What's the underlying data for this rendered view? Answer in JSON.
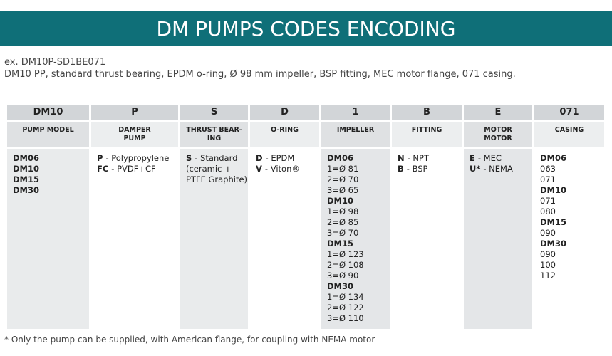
{
  "header": {
    "title": "DM PUMPS CODES ENCODING"
  },
  "example": {
    "code": "ex. DM10P-SD1BE071",
    "description": "DM10 PP, standard thrust bearing, EPDM o-ring, Ø 98 mm impeller, BSP fitting, MEC motor flange, 071 casing."
  },
  "table": {
    "columns": [
      {
        "code": "DM10",
        "label": [
          "PUMP MODEL"
        ],
        "body": [
          {
            "key": "DM06"
          },
          {
            "key": "DM10"
          },
          {
            "key": "DM15"
          },
          {
            "key": "DM30"
          }
        ]
      },
      {
        "code": "P",
        "label": [
          "DAMPER",
          "PUMP"
        ],
        "body": [
          {
            "key": "P",
            "text": "- Polypropylene"
          },
          {
            "key": "FC",
            "text": "- PVDF+CF"
          }
        ]
      },
      {
        "code": "S",
        "label": [
          "THRUST BEAR-",
          "ING"
        ],
        "body": [
          {
            "key": "S",
            "text": "- Standard"
          },
          {
            "text": "(ceramic +"
          },
          {
            "text": "PTFE Graphite)"
          }
        ]
      },
      {
        "code": "D",
        "label": [
          "O-RING"
        ],
        "body": [
          {
            "key": "D",
            "text": "- EPDM"
          },
          {
            "key": "V",
            "text": "- Viton®"
          }
        ]
      },
      {
        "code": "1",
        "label": [
          "IMPELLER"
        ],
        "body": [
          {
            "key": "DM06"
          },
          {
            "text": "1=Ø 81"
          },
          {
            "text": "2=Ø 70"
          },
          {
            "text": "3=Ø 65"
          },
          {
            "key": "DM10"
          },
          {
            "text": "1=Ø 98"
          },
          {
            "text": "2=Ø 85"
          },
          {
            "text": "3=Ø 70"
          },
          {
            "key": "DM15"
          },
          {
            "text": "1=Ø 123"
          },
          {
            "text": "2=Ø 108"
          },
          {
            "text": "3=Ø 90"
          },
          {
            "key": "DM30"
          },
          {
            "text": "1=Ø 134"
          },
          {
            "text": "2=Ø 122"
          },
          {
            "text": "3=Ø 110"
          }
        ]
      },
      {
        "code": "B",
        "label": [
          "FITTING"
        ],
        "body": [
          {
            "key": "N",
            "text": "- NPT"
          },
          {
            "key": "B",
            "text": "- BSP"
          }
        ]
      },
      {
        "code": "E",
        "label": [
          "MOTOR",
          "MOTOR"
        ],
        "body": [
          {
            "key": "E",
            "text": "- MEC"
          },
          {
            "key": "U*",
            "text": "- NEMA"
          }
        ]
      },
      {
        "code": "071",
        "label": [
          "CASING"
        ],
        "body": [
          {
            "key": "DM06"
          },
          {
            "text": "063"
          },
          {
            "text": "071"
          },
          {
            "key": "DM10"
          },
          {
            "text": "071"
          },
          {
            "text": "080"
          },
          {
            "key": "DM15"
          },
          {
            "text": "090"
          },
          {
            "key": "DM30"
          },
          {
            "text": "090"
          },
          {
            "text": "100"
          },
          {
            "text": "112"
          }
        ]
      }
    ]
  },
  "footnote": "* Only the pump can be supplied, with American flange, for coupling with NEMA motor"
}
